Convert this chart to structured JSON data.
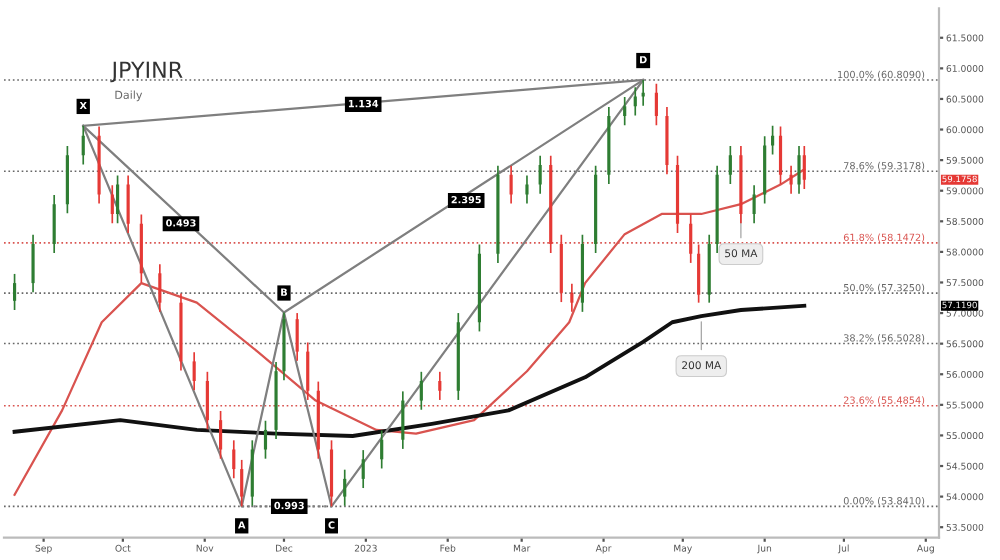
{
  "chart_data": {
    "type": "candlestick",
    "title": "JPYINR",
    "subtitle": "Daily",
    "xlim": [
      "2022-08-17",
      "2023-08-06"
    ],
    "xticks": [
      {
        "value": "2022-09-01",
        "label": "Sep"
      },
      {
        "value": "2022-10-01",
        "label": "Oct"
      },
      {
        "value": "2022-11-01",
        "label": "Nov"
      },
      {
        "value": "2022-12-01",
        "label": "Dec"
      },
      {
        "value": "2023-01-01",
        "label": "2023"
      },
      {
        "value": "2023-02-01",
        "label": "Feb"
      },
      {
        "value": "2023-03-01",
        "label": "Mar"
      },
      {
        "value": "2023-04-01",
        "label": "Apr"
      },
      {
        "value": "2023-05-01",
        "label": "May"
      },
      {
        "value": "2023-06-01",
        "label": "Jun"
      },
      {
        "value": "2023-07-01",
        "label": "Jul"
      },
      {
        "value": "2023-08-01",
        "label": "Aug"
      }
    ],
    "ylim": [
      53.33,
      61.98
    ],
    "yticks": [
      {
        "value": 53.5,
        "label": "53.5000"
      },
      {
        "value": 54,
        "label": "54.0000"
      },
      {
        "value": 54.5,
        "label": "54.5000"
      },
      {
        "value": 55,
        "label": "55.0000"
      },
      {
        "value": 55.5,
        "label": "55.5000"
      },
      {
        "value": 56,
        "label": "56.0000"
      },
      {
        "value": 56.5,
        "label": "56.5000"
      },
      {
        "value": 57,
        "label": "57.0000"
      },
      {
        "value": 57.5,
        "label": "57.5000"
      },
      {
        "value": 58,
        "label": "58.0000"
      },
      {
        "value": 58.5,
        "label": "58.5000"
      },
      {
        "value": 59,
        "label": "59.0000"
      },
      {
        "value": 59.5,
        "label": "59.5000"
      },
      {
        "value": 60,
        "label": "60.0000"
      },
      {
        "value": 60.5,
        "label": "60.5000"
      },
      {
        "value": 61,
        "label": "61.0000"
      },
      {
        "value": 61.5,
        "label": "61.5000"
      }
    ],
    "grid": false,
    "series": [
      {
        "type": "candlestick",
        "x": [
          "2022-08-21",
          "2022-08-28",
          "2022-09-05",
          "2022-09-10",
          "2022-09-16",
          "2022-09-22",
          "2022-09-27",
          "2022-09-29",
          "2022-10-03",
          "2022-10-08",
          "2022-10-15",
          "2022-10-23",
          "2022-10-28",
          "2022-11-02",
          "2022-11-07",
          "2022-11-12",
          "2022-11-15",
          "2022-11-19",
          "2022-11-24",
          "2022-11-28",
          "2022-12-01",
          "2022-12-06",
          "2022-12-10",
          "2022-12-14",
          "2022-12-19",
          "2022-12-24",
          "2022-12-31",
          "2023-01-07",
          "2023-01-15",
          "2023-01-22",
          "2023-01-29",
          "2023-02-05",
          "2023-02-13",
          "2023-02-20",
          "2023-02-25",
          "2023-03-03",
          "2023-03-08",
          "2023-03-12",
          "2023-03-16",
          "2023-03-20",
          "2023-03-24",
          "2023-03-29",
          "2023-04-03",
          "2023-04-09",
          "2023-04-13",
          "2023-04-16",
          "2023-04-21",
          "2023-04-25",
          "2023-04-29",
          "2023-05-04",
          "2023-05-07",
          "2023-05-11",
          "2023-05-14",
          "2023-05-19",
          "2023-05-23",
          "2023-05-28",
          "2023-06-01",
          "2023-06-04",
          "2023-06-07",
          "2023-06-11",
          "2023-06-14",
          "2023-06-16"
        ],
        "ohlc": [
          [
            57.2,
            57.64,
            57.05,
            57.49
          ],
          [
            57.49,
            58.28,
            57.34,
            58.13
          ],
          [
            58.13,
            58.93,
            57.98,
            58.78
          ],
          [
            58.78,
            59.73,
            58.63,
            59.58
          ],
          [
            59.58,
            60.06,
            59.43,
            59.9
          ],
          [
            59.9,
            60.05,
            58.79,
            58.94
          ],
          [
            58.94,
            59.09,
            58.47,
            58.62
          ],
          [
            58.62,
            59.25,
            58.47,
            59.1
          ],
          [
            59.1,
            59.25,
            58.31,
            58.46
          ],
          [
            58.46,
            58.61,
            57.5,
            57.65
          ],
          [
            57.65,
            57.8,
            57.02,
            57.17
          ],
          [
            57.17,
            57.32,
            56.06,
            56.21
          ],
          [
            56.21,
            56.36,
            55.74,
            55.89
          ],
          [
            55.89,
            56.04,
            55.1,
            55.25
          ],
          [
            55.25,
            55.4,
            54.62,
            54.77
          ],
          [
            54.77,
            54.92,
            54.3,
            54.45
          ],
          [
            54.45,
            54.6,
            53.84,
            54.0
          ],
          [
            54.0,
            54.92,
            53.85,
            54.77
          ],
          [
            54.77,
            55.24,
            54.62,
            55.09
          ],
          [
            55.09,
            56.2,
            54.94,
            56.05
          ],
          [
            56.05,
            57.01,
            55.9,
            56.9
          ],
          [
            56.9,
            57.0,
            56.22,
            56.37
          ],
          [
            56.37,
            56.52,
            55.58,
            55.73
          ],
          [
            55.73,
            55.88,
            54.62,
            54.77
          ],
          [
            54.77,
            54.92,
            53.84,
            54.0
          ],
          [
            54.0,
            54.44,
            53.85,
            54.29
          ],
          [
            54.29,
            54.76,
            54.14,
            54.61
          ],
          [
            54.61,
            55.08,
            54.46,
            54.93
          ],
          [
            54.93,
            55.72,
            54.78,
            55.57
          ],
          [
            55.57,
            56.04,
            55.42,
            55.89
          ],
          [
            55.89,
            56.04,
            55.58,
            55.73
          ],
          [
            55.73,
            57.0,
            55.58,
            56.85
          ],
          [
            56.85,
            58.12,
            56.7,
            57.97
          ],
          [
            57.97,
            59.41,
            57.82,
            59.26
          ],
          [
            59.26,
            59.41,
            58.79,
            58.94
          ],
          [
            58.94,
            59.25,
            58.79,
            59.1
          ],
          [
            59.1,
            59.57,
            58.95,
            59.42
          ],
          [
            59.42,
            59.57,
            57.98,
            58.13
          ],
          [
            58.13,
            58.28,
            57.18,
            57.33
          ],
          [
            57.33,
            57.48,
            57.02,
            57.17
          ],
          [
            57.17,
            58.28,
            57.02,
            58.13
          ],
          [
            58.13,
            59.41,
            57.98,
            59.26
          ],
          [
            59.26,
            60.37,
            59.11,
            60.22
          ],
          [
            60.22,
            60.53,
            60.07,
            60.38
          ],
          [
            60.38,
            60.69,
            60.23,
            60.54
          ],
          [
            60.54,
            60.81,
            60.39,
            60.6
          ],
          [
            60.6,
            60.75,
            60.07,
            60.22
          ],
          [
            60.22,
            60.37,
            59.27,
            59.42
          ],
          [
            59.42,
            59.57,
            58.31,
            58.46
          ],
          [
            58.46,
            58.61,
            57.82,
            57.97
          ],
          [
            57.97,
            58.12,
            57.17,
            57.3
          ],
          [
            57.3,
            58.28,
            57.17,
            58.13
          ],
          [
            58.13,
            59.41,
            57.98,
            59.26
          ],
          [
            59.26,
            59.73,
            59.11,
            59.58
          ],
          [
            59.58,
            59.73,
            58.47,
            58.62
          ],
          [
            58.62,
            59.09,
            58.47,
            58.94
          ],
          [
            58.94,
            59.89,
            58.79,
            59.74
          ],
          [
            59.74,
            60.06,
            59.59,
            59.9
          ],
          [
            59.9,
            60.05,
            59.11,
            59.26
          ],
          [
            59.26,
            59.41,
            58.95,
            59.1
          ],
          [
            59.1,
            59.73,
            58.95,
            59.58
          ],
          [
            59.58,
            59.73,
            59.03,
            59.18
          ]
        ],
        "colors": [
          "#2e7d32",
          "#2e7d32",
          "#2e7d32",
          "#2e7d32",
          "#2e7d32",
          "#e53935",
          "#e53935",
          "#2e7d32",
          "#e53935",
          "#e53935",
          "#e53935",
          "#e53935",
          "#e53935",
          "#e53935",
          "#e53935",
          "#e53935",
          "#e53935",
          "#2e7d32",
          "#2e7d32",
          "#2e7d32",
          "#2e7d32",
          "#e53935",
          "#e53935",
          "#e53935",
          "#e53935",
          "#2e7d32",
          "#2e7d32",
          "#2e7d32",
          "#2e7d32",
          "#2e7d32",
          "#e53935",
          "#2e7d32",
          "#2e7d32",
          "#2e7d32",
          "#e53935",
          "#2e7d32",
          "#2e7d32",
          "#e53935",
          "#e53935",
          "#e53935",
          "#2e7d32",
          "#2e7d32",
          "#2e7d32",
          "#2e7d32",
          "#2e7d32",
          "#2e7d32",
          "#e53935",
          "#e53935",
          "#e53935",
          "#e53935",
          "#e53935",
          "#2e7d32",
          "#2e7d32",
          "#2e7d32",
          "#e53935",
          "#2e7d32",
          "#2e7d32",
          "#2e7d32",
          "#e53935",
          "#e53935",
          "#2e7d32",
          "#e53935"
        ]
      },
      {
        "type": "line",
        "color": "#d9534f",
        "line_style": "solid",
        "x": [
          "2022-08-21",
          "2022-09-08",
          "2022-09-23",
          "2022-10-08",
          "2022-10-29",
          "2022-11-21",
          "2022-12-13",
          "2023-01-05",
          "2023-01-20",
          "2023-02-11",
          "2023-03-03",
          "2023-03-19",
          "2023-03-25",
          "2023-04-09",
          "2023-04-23",
          "2023-05-08",
          "2023-05-23",
          "2023-06-07",
          "2023-06-16"
        ],
        "values": [
          54.03,
          55.41,
          56.85,
          57.49,
          57.17,
          56.37,
          55.57,
          55.09,
          55.03,
          55.25,
          56.05,
          56.85,
          57.49,
          58.29,
          58.62,
          58.62,
          58.78,
          59.1,
          59.35
        ]
      },
      {
        "type": "line",
        "color": "#111111",
        "line_style": "solid",
        "x": [
          "2022-08-21",
          "2022-09-30",
          "2022-10-29",
          "2022-11-28",
          "2022-12-27",
          "2023-01-26",
          "2023-02-24",
          "2023-03-25",
          "2023-04-16",
          "2023-04-27",
          "2023-05-08",
          "2023-05-23",
          "2023-06-16"
        ],
        "values": [
          55.06,
          55.25,
          55.09,
          55.03,
          54.99,
          55.19,
          55.41,
          55.95,
          56.53,
          56.85,
          56.95,
          57.05,
          57.12
        ]
      },
      {
        "type": "line",
        "color": "#7f7f7f",
        "line_style": "solid",
        "x": [
          "2022-09-16",
          "2022-11-15",
          "2022-12-01",
          "2022-12-19",
          "2023-04-16"
        ],
        "values": [
          60.06,
          53.84,
          57.01,
          53.84,
          60.81
        ]
      },
      {
        "type": "line",
        "color": "#7f7f7f",
        "line_style": "solid",
        "x": [
          "2022-09-16",
          "2022-12-01",
          "2023-04-16"
        ],
        "values": [
          60.06,
          57.01,
          60.81
        ]
      },
      {
        "type": "line",
        "color": "#7f7f7f",
        "line_style": "solid",
        "x": [
          "2022-09-16",
          "2023-04-16"
        ],
        "values": [
          60.06,
          60.81
        ]
      },
      {
        "type": "line",
        "color": "#7f7f7f",
        "line_style": "dotted",
        "x": [
          "2022-11-15",
          "2022-12-19"
        ],
        "values": [
          53.84,
          53.84
        ]
      }
    ],
    "ref_lines": [
      {
        "axis": "y",
        "value": 60.809,
        "label": "100.0% (60.8090)",
        "color": "#666666",
        "line_style": "dotted"
      },
      {
        "axis": "y",
        "value": 59.3178,
        "label": "78.6% (59.3178)",
        "color": "#666666",
        "line_style": "dotted"
      },
      {
        "axis": "y",
        "value": 58.1472,
        "label": "61.8% (58.1472)",
        "color": "#d9534f",
        "line_style": "dotted"
      },
      {
        "axis": "y",
        "value": 57.325,
        "label": "50.0% (57.3250)",
        "color": "#666666",
        "line_style": "dotted"
      },
      {
        "axis": "y",
        "value": 56.5028,
        "label": "38.2% (56.5028)",
        "color": "#666666",
        "line_style": "dotted"
      },
      {
        "axis": "y",
        "value": 55.4854,
        "label": "23.6% (55.4854)",
        "color": "#d9534f",
        "line_style": "dotted"
      },
      {
        "axis": "y",
        "value": 53.841,
        "label": "0.00% (53.8410)",
        "color": "#666666",
        "line_style": "dotted"
      }
    ],
    "annotations": [
      {
        "text": "X",
        "x": "2022-09-16",
        "y": 60.06
      },
      {
        "text": "A",
        "x": "2022-11-15",
        "y": 53.84
      },
      {
        "text": "B",
        "x": "2022-12-01",
        "y": 57.01
      },
      {
        "text": "C",
        "x": "2022-12-19",
        "y": 53.84
      },
      {
        "text": "D",
        "x": "2023-04-16",
        "y": 60.81
      },
      {
        "text": "0.493",
        "x": "2022-10-23",
        "y": 58.46
      },
      {
        "text": "1.134",
        "x": "2022-12-31",
        "y": 60.41
      },
      {
        "text": "2.395",
        "x": "2023-02-08",
        "y": 58.84
      },
      {
        "text": "0.993",
        "x": "2022-12-03",
        "y": 53.84
      },
      {
        "text": "50 MA",
        "x": "2023-05-23",
        "y": 58.78
      },
      {
        "text": "200 MA",
        "x": "2023-05-08",
        "y": 56.95
      },
      "59.1758",
      "57.1190"
    ]
  }
}
